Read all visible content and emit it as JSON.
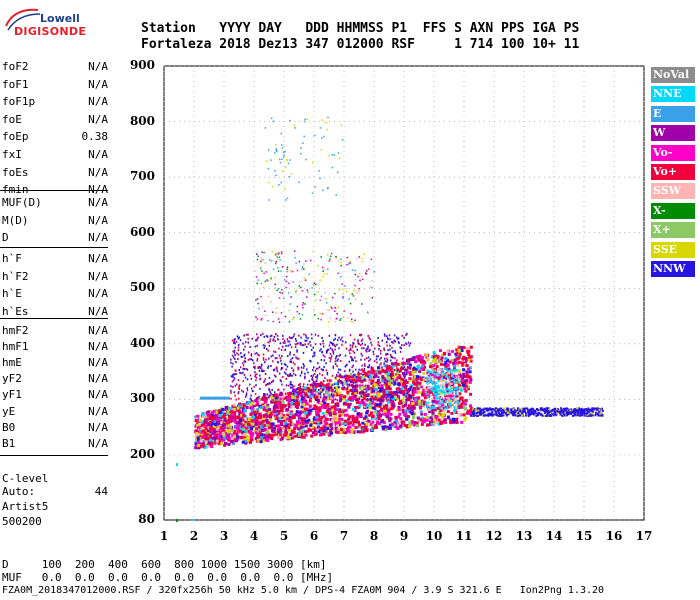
{
  "logo": {
    "line1": "Lowell",
    "line2": "DIGISONDE"
  },
  "header": {
    "row1": "Station   YYYY DAY   DDD HHMMSS P1  FFS S AXN PPS IGA PS",
    "row2": "Fortaleza 2018 Dez13 347 012000 RSF     1 714 100 10+ 11"
  },
  "params_group1": [
    {
      "name": "foF2",
      "value": "N/A"
    },
    {
      "name": "foF1",
      "value": "N/A"
    },
    {
      "name": "foF1p",
      "value": "N/A"
    },
    {
      "name": "foE",
      "value": "N/A"
    },
    {
      "name": "foEp",
      "value": "0.38"
    },
    {
      "name": "fxI",
      "value": "N/A"
    },
    {
      "name": "foEs",
      "value": "N/A"
    },
    {
      "name": "fmin",
      "value": "N/A"
    }
  ],
  "params_group2": [
    {
      "name": "MUF(D)",
      "value": "N/A"
    },
    {
      "name": "M(D)",
      "value": "N/A"
    },
    {
      "name": "D",
      "value": "N/A"
    }
  ],
  "params_group3": [
    {
      "name": "h`F",
      "value": "N/A"
    },
    {
      "name": "h`F2",
      "value": "N/A"
    },
    {
      "name": "h`E",
      "value": "N/A"
    },
    {
      "name": "h`Es",
      "value": "N/A"
    }
  ],
  "params_group4": [
    {
      "name": "hmF2",
      "value": "N/A"
    },
    {
      "name": "hmF1",
      "value": "N/A"
    },
    {
      "name": "hmE",
      "value": "N/A"
    },
    {
      "name": "yF2",
      "value": "N/A"
    },
    {
      "name": "yF1",
      "value": "N/A"
    },
    {
      "name": "yE",
      "value": "N/A"
    },
    {
      "name": "B0",
      "value": "N/A"
    },
    {
      "name": "B1",
      "value": "N/A"
    }
  ],
  "clevel": {
    "name": "C-level",
    "value": "44"
  },
  "auto": {
    "line1": "Auto:",
    "line2": "Artist5",
    "line3": "500200"
  },
  "legend": [
    {
      "label": "NoVal",
      "color": "#8c8c8c"
    },
    {
      "label": "NNE",
      "color": "#00d8ff"
    },
    {
      "label": "E",
      "color": "#3aa0e8"
    },
    {
      "label": "W",
      "color": "#a000a8"
    },
    {
      "label": "Vo-",
      "color": "#ff00c8"
    },
    {
      "label": "Vo+",
      "color": "#f0003c"
    },
    {
      "label": "SSW",
      "color": "#ffb4b4"
    },
    {
      "label": "X-",
      "color": "#008c00"
    },
    {
      "label": "X+",
      "color": "#8cc864"
    },
    {
      "label": "SSE",
      "color": "#d8d800"
    },
    {
      "label": "NNW",
      "color": "#2814e0"
    }
  ],
  "chart_data": {
    "type": "scatter",
    "yticks": [
      80,
      200,
      300,
      400,
      500,
      600,
      700,
      800,
      900
    ],
    "xticks": [
      1,
      2,
      3,
      4,
      5,
      6,
      7,
      8,
      9,
      10,
      11,
      12,
      13,
      14,
      15,
      16,
      17
    ],
    "xlim": [
      1,
      17
    ],
    "xlabel": "",
    "ylabel": ""
  },
  "footer": {
    "row_d": "D     100  200  400  600  800 1000 1500 3000 [km]",
    "row_muf": "MUF   0.0  0.0  0.0  0.0  0.0  0.0  0.0  0.0 [MHz]",
    "row_file": "FZA0M_2018347012000.RSF / 320fx256h 50 kHz 5.0 km / DPS-4 FZA0M 904 / 3.9 S 321.6 E   Ion2Png 1.3.20"
  }
}
